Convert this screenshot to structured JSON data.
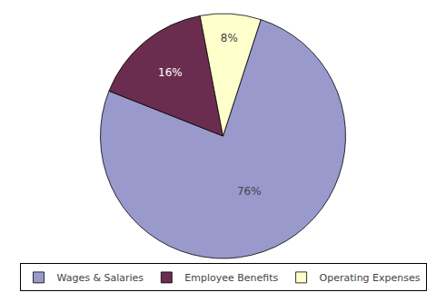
{
  "chart_data": {
    "type": "pie",
    "categories": [
      "Wages & Salaries",
      "Employee Benefits",
      "Operating Expenses"
    ],
    "values": [
      76,
      16,
      8
    ],
    "value_labels": [
      "76%",
      "16%",
      "8%"
    ],
    "colors": [
      "#9999CC",
      "#6B2D4F",
      "#FFFFCC"
    ],
    "data_labels": true,
    "legend": "bottom"
  }
}
